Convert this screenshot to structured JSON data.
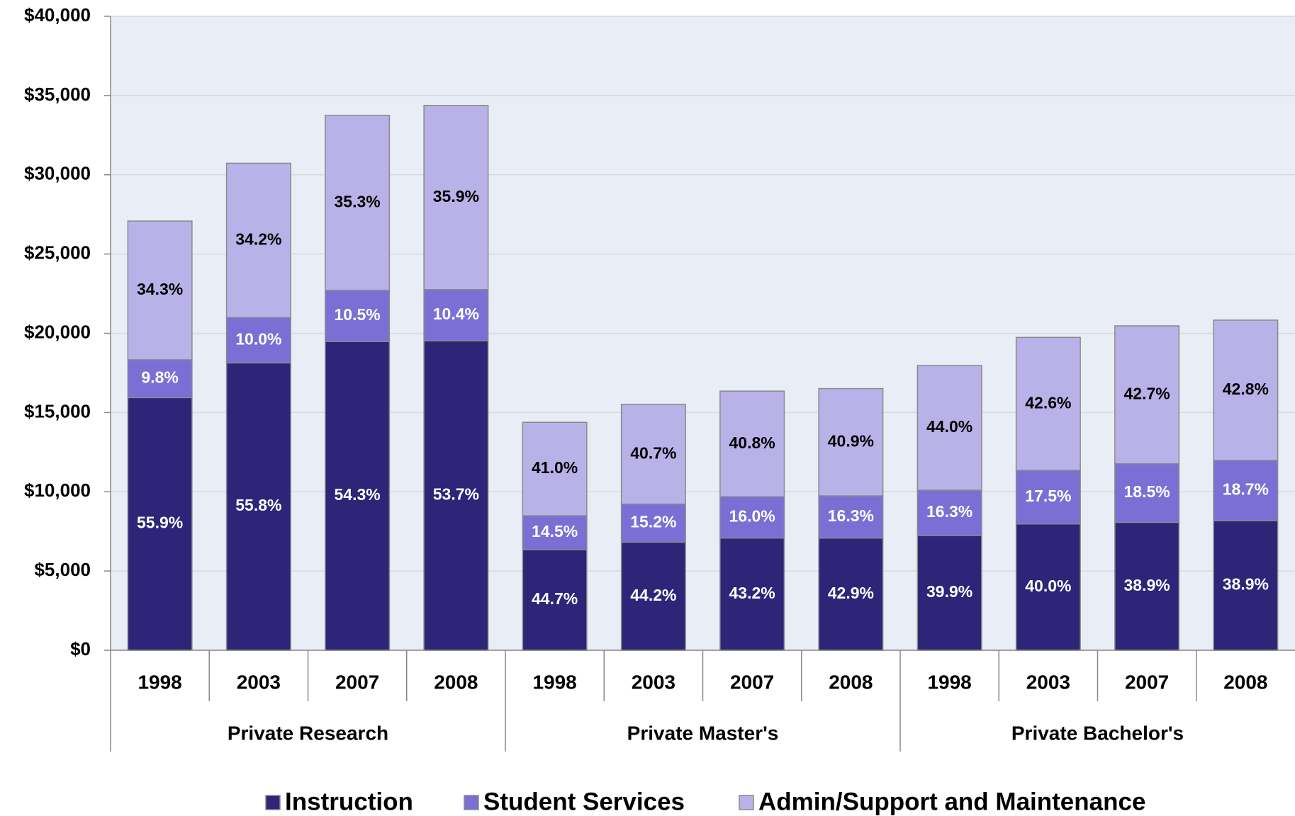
{
  "chart_data": {
    "type": "stacked_bar",
    "categories": [
      "1998",
      "2003",
      "2007",
      "2008",
      "1998",
      "2003",
      "2007",
      "2008",
      "1998",
      "2003",
      "2007",
      "2008"
    ],
    "groups": [
      "Private Research",
      "Private Master's",
      "Private Bachelor's"
    ],
    "series": [
      {
        "name": "Instruction",
        "color": "#2e2478",
        "values": [
          15940,
          18130,
          19480,
          19530,
          6350,
          6820,
          7080,
          7080,
          7240,
          7970,
          8070,
          8180
        ],
        "share_labels": [
          "55.9%",
          "55.8%",
          "54.3%",
          "53.7%",
          "44.7%",
          "44.2%",
          "43.2%",
          "42.9%",
          "39.9%",
          "40.0%",
          "38.9%",
          "38.9%"
        ]
      },
      {
        "name": "Student Services",
        "color": "#7b6fd6",
        "values": [
          2390,
          2860,
          3230,
          3230,
          2140,
          2400,
          2610,
          2660,
          2860,
          3380,
          3700,
          3800
        ],
        "share_labels": [
          "9.8%",
          "10.0%",
          "10.5%",
          "10.4%",
          "14.5%",
          "15.2%",
          "16.0%",
          "16.3%",
          "16.3%",
          "17.5%",
          "18.5%",
          "18.7%"
        ]
      },
      {
        "name": "Admin/Support and Maintenance",
        "color": "#b9b2e8",
        "values": [
          8750,
          9740,
          11040,
          11620,
          5890,
          6300,
          6660,
          6770,
          7870,
          8390,
          8700,
          8850
        ],
        "share_labels": [
          "34.3%",
          "34.2%",
          "35.3%",
          "35.9%",
          "41.0%",
          "40.7%",
          "40.8%",
          "40.9%",
          "44.0%",
          "42.6%",
          "42.7%",
          "42.8%"
        ]
      }
    ],
    "ylim": [
      0,
      40000
    ],
    "yticks": [
      {
        "value": 0,
        "label": "$0"
      },
      {
        "value": 5000,
        "label": "$5,000"
      },
      {
        "value": 10000,
        "label": "$10,000"
      },
      {
        "value": 15000,
        "label": "$15,000"
      },
      {
        "value": 20000,
        "label": "$20,000"
      },
      {
        "value": 25000,
        "label": "$25,000"
      },
      {
        "value": 30000,
        "label": "$30,000"
      },
      {
        "value": 35000,
        "label": "$35,000"
      },
      {
        "value": 40000,
        "label": "$40,000"
      }
    ],
    "grid": true,
    "legend": "bottom"
  }
}
